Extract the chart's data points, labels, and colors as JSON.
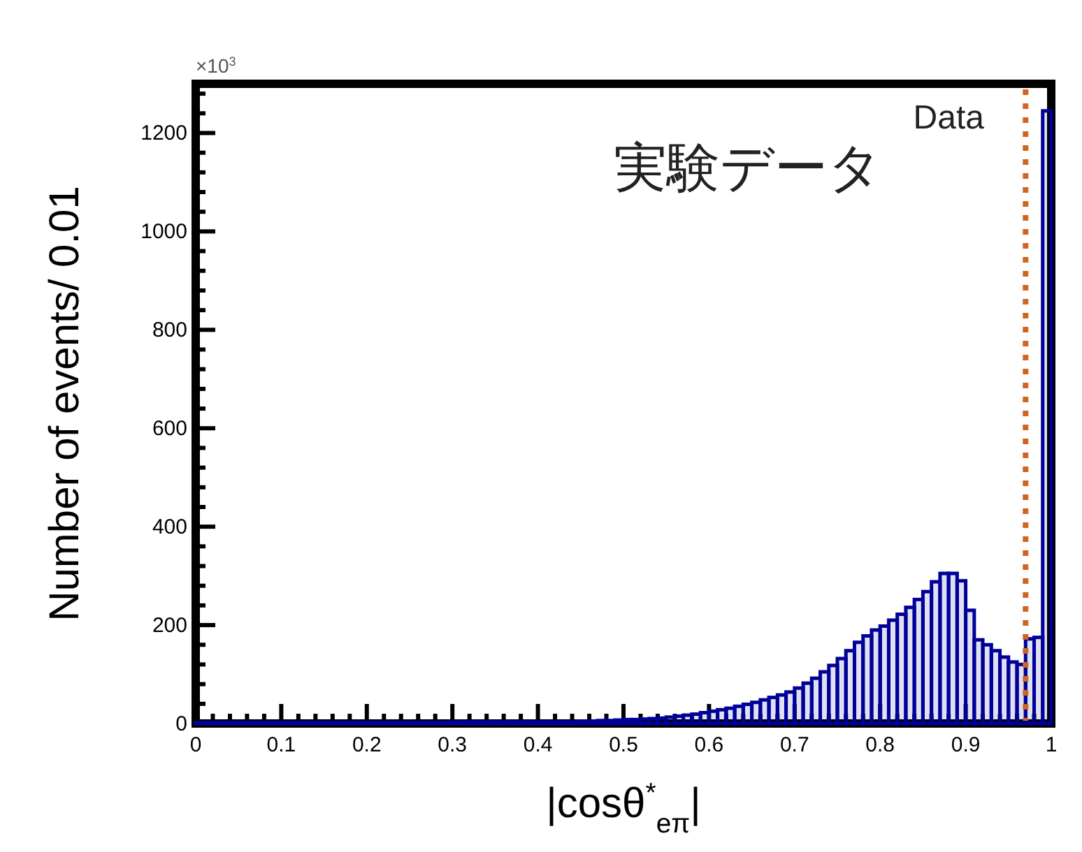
{
  "chart_data": {
    "type": "histogram",
    "xlabel": "|cosθ$^{*}$$_{eπ}$|",
    "ylabel": "Number of events/ 0.01",
    "annotations": [
      "Data",
      "実験データ",
      "×10$^{3}$"
    ],
    "color": "#000099",
    "bins": [
      0,
      0.01,
      0.02,
      0.03,
      0.04,
      0.05,
      0.06,
      0.07,
      0.08,
      0.09,
      0.1,
      0.11,
      0.12,
      0.13,
      0.14,
      0.15,
      0.16,
      0.17,
      0.18,
      0.19,
      0.2,
      0.21,
      0.22,
      0.23,
      0.24,
      0.25,
      0.26,
      0.27,
      0.28,
      0.29,
      0.3,
      0.31,
      0.32,
      0.33,
      0.34,
      0.35,
      0.36,
      0.37,
      0.38,
      0.39,
      0.4,
      0.41,
      0.42,
      0.43,
      0.44,
      0.45,
      0.46,
      0.47,
      0.48,
      0.49,
      0.5,
      0.51,
      0.52,
      0.53,
      0.54,
      0.55,
      0.56,
      0.57,
      0.58,
      0.59,
      0.6,
      0.61,
      0.62,
      0.63,
      0.64,
      0.65,
      0.66,
      0.67,
      0.68,
      0.69,
      0.7,
      0.71,
      0.72,
      0.73,
      0.74,
      0.75,
      0.76,
      0.77,
      0.78,
      0.79,
      0.8,
      0.81,
      0.82,
      0.83,
      0.84,
      0.85,
      0.86,
      0.87,
      0.88,
      0.89,
      0.9,
      0.91,
      0.92,
      0.93,
      0.94,
      0.95,
      0.96,
      0.97,
      0.98,
      0.99,
      1
    ],
    "values": [
      2,
      2,
      2,
      2,
      2,
      2,
      2,
      2,
      2,
      2,
      2,
      2,
      2,
      2,
      2,
      2,
      2,
      2,
      2,
      2,
      2,
      2,
      2,
      2,
      2,
      2,
      2,
      2,
      2,
      2,
      3,
      3,
      3,
      3,
      3,
      3,
      3,
      3,
      3,
      3,
      3,
      3,
      3,
      3,
      3,
      5,
      5,
      6,
      6,
      7,
      8,
      8,
      9,
      10,
      11,
      13,
      15,
      17,
      19,
      22,
      25,
      28,
      31,
      35,
      39,
      43,
      48,
      53,
      58,
      64,
      72,
      82,
      92,
      105,
      118,
      132,
      148,
      165,
      178,
      190,
      198,
      210,
      222,
      236,
      252,
      268,
      288,
      305,
      305,
      290,
      230,
      170,
      160,
      148,
      135,
      125,
      120,
      172,
      175,
      1245
    ],
    "xlim": [
      0,
      1
    ],
    "ylim": [
      0,
      1300
    ],
    "xticks": [
      0,
      0.1,
      0.2,
      0.3,
      0.4,
      0.5,
      0.6,
      0.7,
      0.8,
      0.9,
      1
    ],
    "yticks": [
      0,
      200,
      400,
      600,
      800,
      1000,
      1200
    ],
    "ref_lines": [
      {
        "axis": "x",
        "value": 0.97,
        "color": "#cc6622",
        "line_style": "dotted"
      }
    ]
  }
}
